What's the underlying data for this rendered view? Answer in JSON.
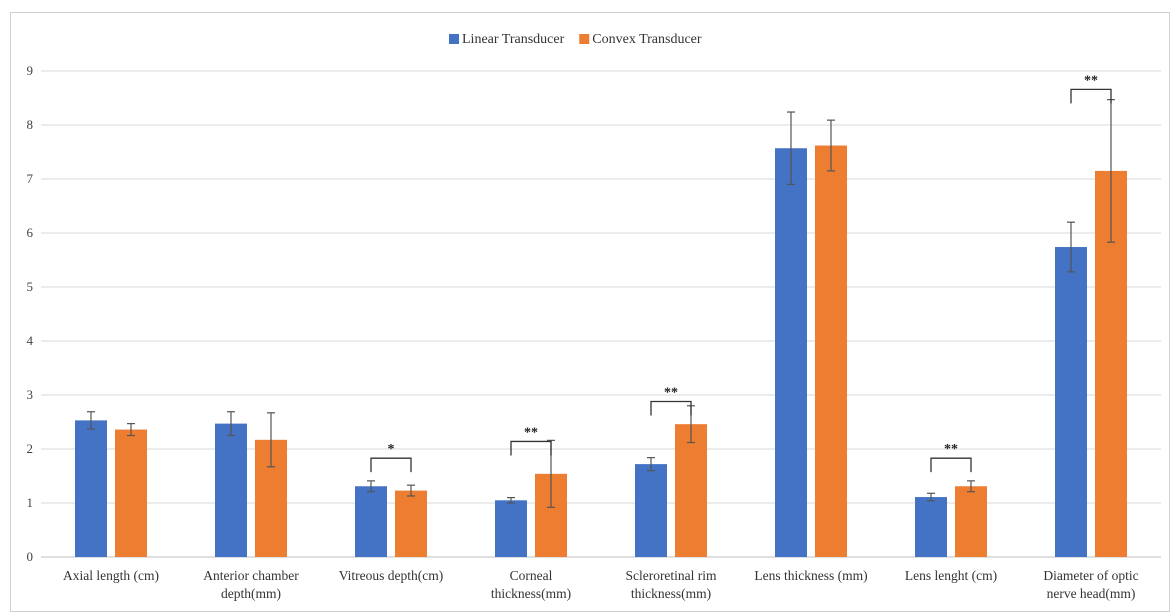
{
  "chart_data": {
    "type": "bar",
    "categories": [
      [
        "Axial length (cm)"
      ],
      [
        "Anterior chamber",
        "depth(mm)"
      ],
      [
        "Vitreous depth(cm)"
      ],
      [
        "Corneal",
        "thickness(mm)"
      ],
      [
        "Scleroretinal rim",
        "thickness(mm)"
      ],
      [
        "Lens thickness (mm)"
      ],
      [
        "Lens lenght (cm)"
      ],
      [
        "Diameter of optic",
        "nerve head(mm)"
      ]
    ],
    "series": [
      {
        "name": "Linear Transducer",
        "color": "#4472c4",
        "values": [
          2.53,
          2.47,
          1.31,
          1.05,
          1.72,
          7.57,
          1.11,
          5.74
        ],
        "errors": [
          0.16,
          0.22,
          0.1,
          0.05,
          0.12,
          0.67,
          0.07,
          0.46
        ]
      },
      {
        "name": "Convex Transducer",
        "color": "#ed7d31",
        "values": [
          2.36,
          2.17,
          1.23,
          1.54,
          2.46,
          7.62,
          1.31,
          7.15
        ],
        "errors": [
          0.11,
          0.5,
          0.1,
          0.62,
          0.34,
          0.47,
          0.1,
          1.32
        ]
      }
    ],
    "significance": [
      {
        "category_index": 2,
        "label": "*",
        "y": 1.83
      },
      {
        "category_index": 3,
        "label": "**",
        "y": 2.14
      },
      {
        "category_index": 4,
        "label": "**",
        "y": 2.88
      },
      {
        "category_index": 6,
        "label": "**",
        "y": 1.83
      },
      {
        "category_index": 7,
        "label": "**",
        "y": 8.66
      }
    ],
    "ylim": [
      0,
      9
    ],
    "yticks": [
      0,
      1,
      2,
      3,
      4,
      5,
      6,
      7,
      8,
      9
    ],
    "grid": true,
    "legend_position": "top-center"
  }
}
